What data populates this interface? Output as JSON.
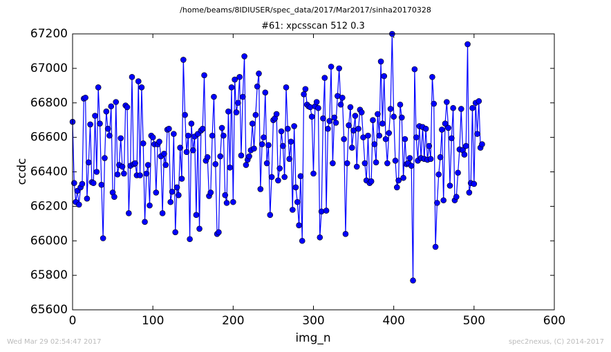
{
  "chart_data": {
    "type": "line",
    "title": "/home/beams/8IDIUSER/spec_data/2017/Mar2017/sinha20170328",
    "subtitle": "#61: xpcsscan 512 0.3",
    "xlabel": "img_n",
    "ylabel": "ccdc",
    "footer_left": "Wed Mar 29 02:54:47 2017",
    "footer_right": "spec2nexus, (C) 2014-2017",
    "color": "#0000ff",
    "marker": "circle",
    "xlim": [
      0,
      600
    ],
    "xticks": [
      0,
      100,
      200,
      300,
      400,
      500,
      600
    ],
    "ylim": [
      65600,
      67200
    ],
    "yticks": [
      65600,
      65800,
      66000,
      66200,
      66400,
      66600,
      66800,
      67000,
      67200
    ],
    "x": [
      0,
      2,
      4,
      6,
      8,
      10,
      12,
      14,
      16,
      18,
      20,
      22,
      24,
      26,
      28,
      30,
      32,
      34,
      36,
      38,
      40,
      42,
      44,
      46,
      48,
      50,
      52,
      54,
      56,
      58,
      60,
      62,
      64,
      66,
      68,
      70,
      72,
      74,
      76,
      78,
      80,
      82,
      84,
      86,
      88,
      90,
      92,
      94,
      96,
      98,
      100,
      102,
      104,
      106,
      108,
      110,
      112,
      114,
      116,
      118,
      120,
      122,
      124,
      126,
      128,
      130,
      132,
      134,
      136,
      138,
      140,
      142,
      144,
      146,
      148,
      150,
      152,
      154,
      156,
      158,
      160,
      162,
      164,
      166,
      168,
      170,
      172,
      174,
      176,
      178,
      180,
      182,
      184,
      186,
      188,
      190,
      192,
      194,
      196,
      198,
      200,
      202,
      204,
      206,
      208,
      210,
      212,
      214,
      216,
      218,
      220,
      222,
      224,
      226,
      228,
      230,
      232,
      234,
      236,
      238,
      240,
      242,
      244,
      246,
      248,
      250,
      252,
      254,
      256,
      258,
      260,
      262,
      264,
      266,
      268,
      270,
      272,
      274,
      276,
      278,
      280,
      282,
      284,
      286,
      288,
      290,
      292,
      294,
      296,
      298,
      300,
      302,
      304,
      306,
      308,
      310,
      312,
      314,
      316,
      318,
      320,
      322,
      324,
      326,
      328,
      330,
      332,
      334,
      336,
      338,
      340,
      342,
      344,
      346,
      348,
      350,
      352,
      354,
      356,
      358,
      360,
      362,
      364,
      366,
      368,
      370,
      372,
      374,
      376,
      378,
      380,
      382,
      384,
      386,
      388,
      390,
      392,
      394,
      396,
      398,
      400,
      402,
      404,
      406,
      408,
      410,
      412,
      414,
      416,
      418,
      420,
      422,
      424,
      426,
      428,
      430,
      432,
      434,
      436,
      438,
      440,
      442,
      444,
      446,
      448,
      450,
      452,
      454,
      456,
      458,
      460,
      462,
      464,
      466,
      468,
      470,
      472,
      474,
      476,
      478,
      480,
      482,
      484,
      486,
      488,
      490,
      492,
      494,
      496,
      498,
      500,
      502,
      504,
      506,
      508,
      510
    ],
    "values": [
      66690,
      66335,
      66225,
      66290,
      66210,
      66310,
      66330,
      66825,
      66830,
      66245,
      66455,
      66675,
      66340,
      66335,
      66725,
      66400,
      66890,
      66680,
      66325,
      66015,
      66480,
      66750,
      66650,
      66610,
      66780,
      66280,
      66255,
      66805,
      66385,
      66440,
      66595,
      66430,
      66390,
      66785,
      66775,
      66160,
      66435,
      66950,
      66445,
      66450,
      66380,
      66925,
      66380,
      66890,
      66565,
      66110,
      66390,
      66440,
      66205,
      66610,
      66600,
      66560,
      66280,
      66560,
      66575,
      66490,
      66160,
      66505,
      66440,
      66645,
      66650,
      66225,
      66285,
      66620,
      66050,
      66310,
      66265,
      66540,
      66360,
      67050,
      66730,
      66515,
      66610,
      66010,
      66680,
      66525,
      66605,
      66150,
      66620,
      66070,
      66640,
      66650,
      66960,
      66465,
      66485,
      66260,
      66280,
      66610,
      66835,
      66445,
      66040,
      66050,
      66490,
      66655,
      66610,
      66265,
      66220,
      66750,
      66425,
      66890,
      66225,
      66935,
      66745,
      66800,
      66950,
      66495,
      66835,
      67070,
      66440,
      66470,
      66490,
      66525,
      66680,
      66535,
      66730,
      66895,
      66970,
      66300,
      66560,
      66600,
      66860,
      66450,
      66555,
      66150,
      66370,
      66700,
      66710,
      66735,
      66350,
      66420,
      66635,
      66550,
      66370,
      66890,
      66650,
      66475,
      66575,
      66180,
      66665,
      66310,
      66225,
      66090,
      66375,
      66000,
      66850,
      66880,
      66790,
      66780,
      66775,
      66720,
      66390,
      66780,
      66805,
      66770,
      66020,
      66170,
      66710,
      66945,
      66175,
      66650,
      66695,
      67010,
      66450,
      66715,
      66685,
      66840,
      67000,
      66790,
      66830,
      66590,
      66040,
      66450,
      66670,
      66775,
      66540,
      66640,
      66725,
      66430,
      66650,
      66760,
      66745,
      66600,
      66450,
      66350,
      66610,
      66335,
      66345,
      66700,
      66560,
      66455,
      66735,
      66610,
      67040,
      66680,
      66955,
      66590,
      66450,
      66625,
      66765,
      67200,
      66720,
      66465,
      66310,
      66350,
      66790,
      66715,
      66365,
      66590,
      66445,
      66450,
      66480,
      66435,
      65770,
      66995,
      66600,
      66465,
      66665,
      66480,
      66660,
      66475,
      66650,
      66470,
      66550,
      66475,
      66950,
      66795,
      65965,
      66220,
      66385,
      66485,
      66645,
      66235,
      66680,
      66805,
      66655,
      66320,
      66595,
      66770,
      66235,
      66255,
      66395,
      66530,
      66765,
      66525,
      66500,
      66550,
      67140,
      66280,
      66335,
      66770,
      66330,
      66800,
      66620,
      66810,
      66540,
      66560
    ]
  }
}
